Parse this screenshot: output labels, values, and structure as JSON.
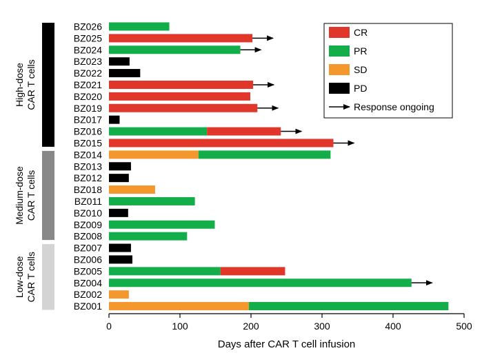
{
  "chart_data": {
    "type": "bar",
    "orientation": "horizontal",
    "stacked": true,
    "xlabel": "Days after CAR T cell infusion",
    "xlim": [
      0,
      500
    ],
    "xticks": [
      0,
      100,
      200,
      300,
      400,
      500
    ],
    "grid": false,
    "legend_position": "top-right",
    "colors": {
      "CR": "#e1372a",
      "PR": "#13ad4a",
      "SD": "#f4982d",
      "PD": "#000000"
    },
    "legend": [
      {
        "key": "CR",
        "label": "CR"
      },
      {
        "key": "PR",
        "label": "PR"
      },
      {
        "key": "SD",
        "label": "SD"
      },
      {
        "key": "PD",
        "label": "PD"
      },
      {
        "key": "arrow",
        "label": "Response ongoing"
      }
    ],
    "groups": [
      {
        "line1": "High-dose",
        "line2": "CAR T cells",
        "color": "#000000",
        "first": "BZ026",
        "last": "BZ015"
      },
      {
        "line1": "Medium-dose",
        "line2": "CAR T cells",
        "color": "#888888",
        "first": "BZ014",
        "last": "BZ008"
      },
      {
        "line1": "Low-dose",
        "line2": "CAR T cells",
        "color": "#d4d4d4",
        "first": "BZ007",
        "last": "BZ001"
      }
    ],
    "patients": [
      {
        "id": "BZ026",
        "segments": [
          {
            "type": "PR",
            "start": 0,
            "end": 85
          }
        ],
        "ongoing": false
      },
      {
        "id": "BZ025",
        "segments": [
          {
            "type": "CR",
            "start": 0,
            "end": 202
          }
        ],
        "ongoing": true
      },
      {
        "id": "BZ024",
        "segments": [
          {
            "type": "PR",
            "start": 0,
            "end": 185
          }
        ],
        "ongoing": true
      },
      {
        "id": "BZ023",
        "segments": [
          {
            "type": "PD",
            "start": 0,
            "end": 29
          }
        ],
        "ongoing": false
      },
      {
        "id": "BZ022",
        "segments": [
          {
            "type": "PD",
            "start": 0,
            "end": 44
          }
        ],
        "ongoing": false
      },
      {
        "id": "BZ021",
        "segments": [
          {
            "type": "CR",
            "start": 0,
            "end": 203
          }
        ],
        "ongoing": true
      },
      {
        "id": "BZ020",
        "segments": [
          {
            "type": "CR",
            "start": 0,
            "end": 199
          }
        ],
        "ongoing": false
      },
      {
        "id": "BZ019",
        "segments": [
          {
            "type": "CR",
            "start": 0,
            "end": 209
          }
        ],
        "ongoing": true
      },
      {
        "id": "BZ017",
        "segments": [
          {
            "type": "PD",
            "start": 0,
            "end": 15
          }
        ],
        "ongoing": false
      },
      {
        "id": "BZ016",
        "segments": [
          {
            "type": "PR",
            "start": 0,
            "end": 138
          },
          {
            "type": "CR",
            "start": 138,
            "end": 242
          }
        ],
        "ongoing": true
      },
      {
        "id": "BZ015",
        "segments": [
          {
            "type": "CR",
            "start": 0,
            "end": 316
          }
        ],
        "ongoing": true
      },
      {
        "id": "BZ014",
        "segments": [
          {
            "type": "SD",
            "start": 0,
            "end": 126
          },
          {
            "type": "PR",
            "start": 126,
            "end": 312
          }
        ],
        "ongoing": false
      },
      {
        "id": "BZ013",
        "segments": [
          {
            "type": "PD",
            "start": 0,
            "end": 31
          }
        ],
        "ongoing": false
      },
      {
        "id": "BZ012",
        "segments": [
          {
            "type": "PD",
            "start": 0,
            "end": 28
          }
        ],
        "ongoing": false
      },
      {
        "id": "BZ018",
        "segments": [
          {
            "type": "SD",
            "start": 0,
            "end": 65
          }
        ],
        "ongoing": false
      },
      {
        "id": "BZ011",
        "segments": [
          {
            "type": "PR",
            "start": 0,
            "end": 121
          }
        ],
        "ongoing": false
      },
      {
        "id": "BZ010",
        "segments": [
          {
            "type": "PD",
            "start": 0,
            "end": 27
          }
        ],
        "ongoing": false
      },
      {
        "id": "BZ009",
        "segments": [
          {
            "type": "PR",
            "start": 0,
            "end": 149
          }
        ],
        "ongoing": false
      },
      {
        "id": "BZ008",
        "segments": [
          {
            "type": "PR",
            "start": 0,
            "end": 110
          }
        ],
        "ongoing": false
      },
      {
        "id": "BZ007",
        "segments": [
          {
            "type": "PD",
            "start": 0,
            "end": 31
          }
        ],
        "ongoing": false
      },
      {
        "id": "BZ006",
        "segments": [
          {
            "type": "PD",
            "start": 0,
            "end": 33
          }
        ],
        "ongoing": false
      },
      {
        "id": "BZ005",
        "segments": [
          {
            "type": "PR",
            "start": 0,
            "end": 157
          },
          {
            "type": "CR",
            "start": 157,
            "end": 248
          }
        ],
        "ongoing": false
      },
      {
        "id": "BZ004",
        "segments": [
          {
            "type": "PR",
            "start": 0,
            "end": 426
          }
        ],
        "ongoing": true
      },
      {
        "id": "BZ002",
        "segments": [
          {
            "type": "SD",
            "start": 0,
            "end": 28
          }
        ],
        "ongoing": false
      },
      {
        "id": "BZ001",
        "segments": [
          {
            "type": "SD",
            "start": 0,
            "end": 197
          },
          {
            "type": "PR",
            "start": 197,
            "end": 478
          }
        ],
        "ongoing": false
      }
    ]
  }
}
